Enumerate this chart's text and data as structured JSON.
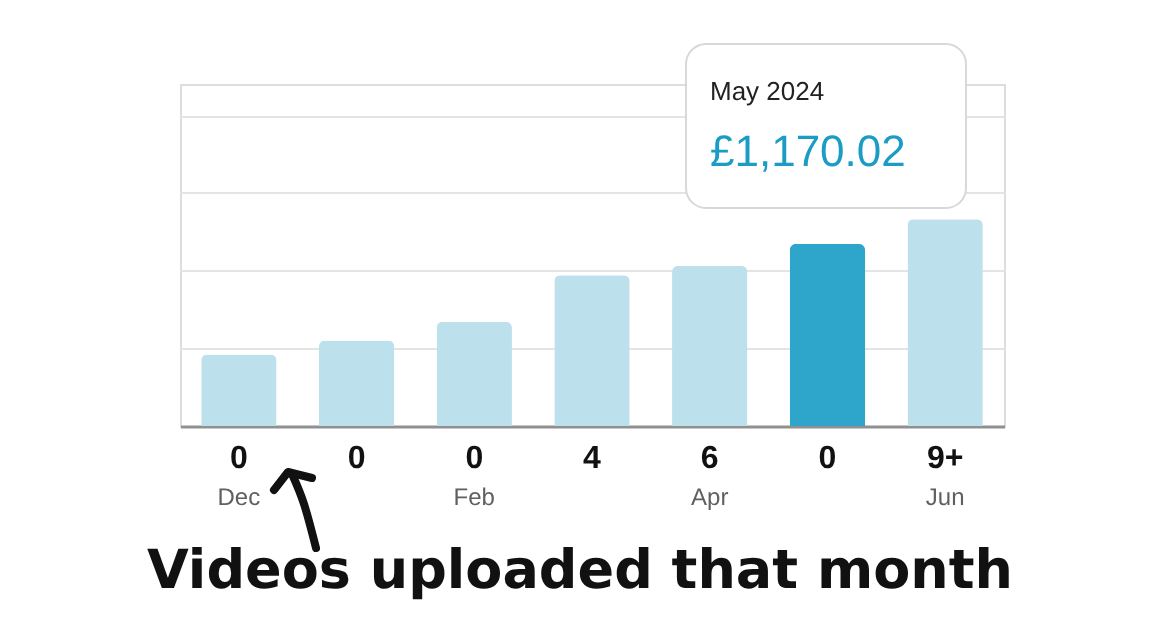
{
  "chart_data": {
    "type": "bar",
    "categories": [
      "Dec",
      null,
      "Feb",
      null,
      "Apr",
      null,
      "Jun"
    ],
    "values": [
      460,
      550,
      670,
      970,
      1030,
      1170.02,
      1330
    ],
    "colors": [
      "#bce1ec",
      "#bce1ec",
      "#bce1ec",
      "#bce1ec",
      "#bce1ec",
      "#2ea6cc",
      "#bce1ec"
    ],
    "value_labels": [
      null,
      null,
      null,
      null,
      null,
      "£1,170.02",
      null
    ],
    "ylim": [
      0,
      2200
    ],
    "yticks": [
      {
        "value": 500,
        "label": null
      },
      {
        "value": 1000,
        "label": null
      },
      {
        "value": 1500,
        "label": null
      },
      {
        "value": 2000,
        "label": null
      }
    ],
    "grid": "y",
    "tick_labels": "x",
    "annotations": [
      "0",
      "0",
      "0",
      "4",
      "6",
      "0",
      "9+",
      "May 2024",
      "Videos uploaded that month"
    ]
  }
}
